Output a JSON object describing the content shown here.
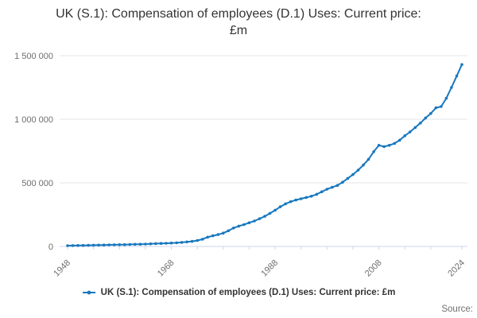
{
  "title": "UK (S.1): Compensation of employees (D.1) Uses: Current price: £m",
  "legend": {
    "label": "UK (S.1): Compensation of employees (D.1) Uses: Current price: £m",
    "marker": "line-with-dot-icon"
  },
  "footer": {
    "source_label": "Source:"
  },
  "colors": {
    "line": "#1878be",
    "grid": "#e6e6e6",
    "axis": "#ccd6eb",
    "tick_label": "#6e6e6e",
    "title_text": "#333333",
    "legend_text": "#333333",
    "source_text": "#707070"
  },
  "chart_data": {
    "type": "line",
    "title": "UK (S.1): Compensation of employees (D.1) Uses: Current price: £m",
    "xlabel": "",
    "ylabel": "",
    "ylim": [
      0,
      1500000
    ],
    "grid": true,
    "legend_position": "bottom",
    "marker": "circle",
    "y_axis": {
      "tick_values": [
        0,
        500000,
        1000000,
        1500000
      ],
      "tick_labels": [
        "0",
        "500 000",
        "1 000 000",
        "1 500 000"
      ]
    },
    "x_axis": {
      "labeled_years": [
        1948,
        1968,
        1988,
        2008,
        2024
      ],
      "labeled_year_strings": [
        "1948",
        "1968",
        "1988",
        "2008",
        "2024"
      ],
      "minor_tick_interval_years": 5,
      "range": [
        1948,
        2024
      ]
    },
    "x": [
      1948,
      1949,
      1950,
      1951,
      1952,
      1953,
      1954,
      1955,
      1956,
      1957,
      1958,
      1959,
      1960,
      1961,
      1962,
      1963,
      1964,
      1965,
      1966,
      1967,
      1968,
      1969,
      1970,
      1971,
      1972,
      1973,
      1974,
      1975,
      1976,
      1977,
      1978,
      1979,
      1980,
      1981,
      1982,
      1983,
      1984,
      1985,
      1986,
      1987,
      1988,
      1989,
      1990,
      1991,
      1992,
      1993,
      1994,
      1995,
      1996,
      1997,
      1998,
      1999,
      2000,
      2001,
      2002,
      2003,
      2004,
      2005,
      2006,
      2007,
      2008,
      2009,
      2010,
      2011,
      2012,
      2013,
      2014,
      2015,
      2016,
      2017,
      2018,
      2019,
      2020,
      2021,
      2022,
      2023,
      2024
    ],
    "series": [
      {
        "name": "UK (S.1): Compensation of employees (D.1) Uses: Current price: £m",
        "values": [
          6500,
          7000,
          7500,
          8300,
          9000,
          9700,
          10400,
          11300,
          12300,
          13100,
          13800,
          14500,
          15500,
          16800,
          17800,
          18800,
          20500,
          22200,
          23700,
          24900,
          26800,
          28800,
          32000,
          35500,
          40000,
          47000,
          57000,
          73000,
          84000,
          93000,
          105000,
          123000,
          145000,
          160000,
          172000,
          186000,
          200000,
          218000,
          237000,
          260000,
          285000,
          312000,
          335000,
          352000,
          365000,
          375000,
          385000,
          395000,
          410000,
          430000,
          450000,
          465000,
          480000,
          505000,
          535000,
          565000,
          600000,
          640000,
          685000,
          745000,
          795000,
          785000,
          795000,
          810000,
          835000,
          870000,
          900000,
          935000,
          970000,
          1010000,
          1045000,
          1090000,
          1100000,
          1165000,
          1250000,
          1340000,
          1430000
        ]
      }
    ]
  }
}
